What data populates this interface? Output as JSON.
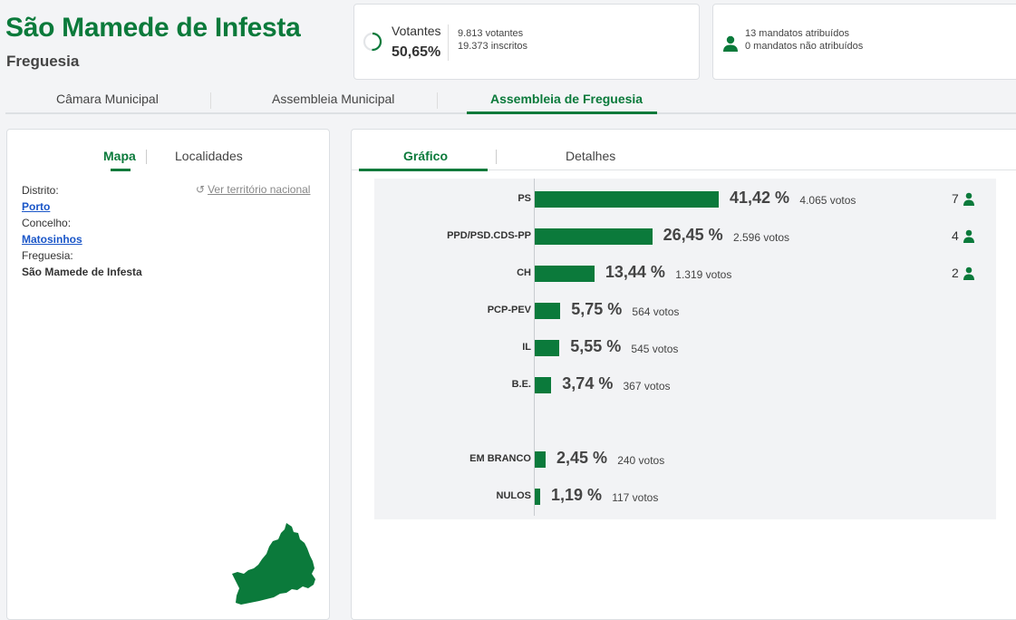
{
  "header": {
    "title": "São Mamede de Infesta",
    "subtitle": "Freguesia"
  },
  "votantes": {
    "label": "Votantes",
    "percent": "50,65%",
    "percent_value": 50.65,
    "votantes_text": "9.813 votantes",
    "inscritos_text": "19.373 inscritos"
  },
  "mandatos": {
    "atribuidos_text": "13 mandatos atribuídos",
    "nao_atribuidos_text": "0 mandatos não atribuídos"
  },
  "main_tabs": [
    {
      "label": "Câmara Municipal"
    },
    {
      "label": "Assembleia Municipal"
    },
    {
      "label": "Assembleia de Freguesia",
      "active": true
    }
  ],
  "left_panel": {
    "tabs": [
      {
        "label": "Mapa",
        "active": true
      },
      {
        "label": "Localidades"
      }
    ],
    "ver_link": "Ver território nacional",
    "distrito_label": "Distrito:",
    "distrito_value": "Porto",
    "concelho_label": "Concelho:",
    "concelho_value": "Matosinhos",
    "freguesia_label": "Freguesia:",
    "freguesia_value": "São Mamede de Infesta"
  },
  "right_panel": {
    "tabs": [
      {
        "label": "Gráfico",
        "active": true
      },
      {
        "label": "Detalhes"
      }
    ]
  },
  "chart_data": {
    "type": "bar",
    "orientation": "horizontal",
    "categories": [
      "PS",
      "PPD/PSD.CDS-PP",
      "CH",
      "PCP-PEV",
      "IL",
      "B.E.",
      "EM BRANCO",
      "NULOS"
    ],
    "values": [
      41.42,
      26.45,
      13.44,
      5.75,
      5.55,
      3.74,
      2.45,
      1.19
    ],
    "value_labels": [
      "41,42 %",
      "26,45 %",
      "13,44 %",
      "5,75 %",
      "5,55 %",
      "3,74 %",
      "2,45 %",
      "1,19 %"
    ],
    "votes": [
      "4.065 votos",
      "2.596 votos",
      "1.319 votos",
      "564 votos",
      "545 votos",
      "367 votos",
      "240 votos",
      "117 votos"
    ],
    "seats": [
      "7",
      "4",
      "2",
      "",
      "",
      "",
      "",
      ""
    ],
    "bar_color": "#0b7a3b"
  },
  "colors": {
    "accent": "#0b7a3b",
    "link": "#1a56c8"
  }
}
